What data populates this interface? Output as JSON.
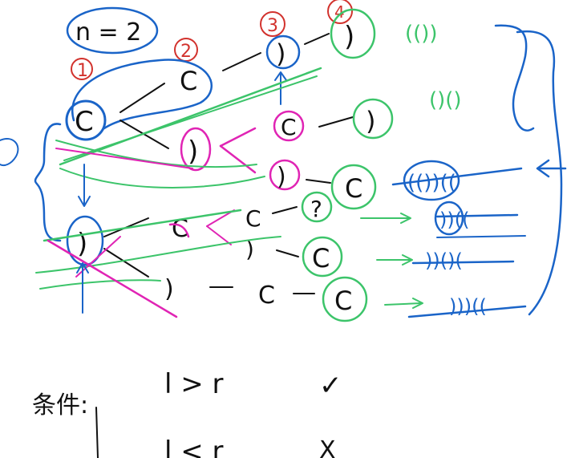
{
  "note": {
    "n_label": "n = 2",
    "step_numbers": [
      "1",
      "2",
      "3",
      "4"
    ],
    "tree": {
      "root": "C",
      "level2_top": "C",
      "level2_bottom": ")",
      "level3_a": ")",
      "level3_b": "C",
      "level3_c": ")",
      "level4_a": ")",
      "level4_b": ")",
      "level4_c": "C",
      "lower_root": ")",
      "lower_c1": "C",
      "lower_c2": "C",
      "lower_q": "?",
      "lower_c3": "C",
      "lower_paren": ")",
      "lower_c4": "C",
      "lower_c5": "C"
    },
    "results": {
      "valid_1": "(())",
      "valid_2": "()()",
      "invalid_1": "(())((",
      "invalid_2": "))((",
      "invalid_3": "))()(",
      "invalid_4": ")))(("
    },
    "condition_label": "条件:",
    "rule_1": "l > r",
    "rule_1_mark": "✓",
    "rule_2": "l < r",
    "rule_2_mark": "X"
  },
  "colors": {
    "ink": "#111111",
    "blue": "#1a64c8",
    "green": "#3cc46a",
    "red": "#d2322d",
    "magenta": "#e024b4"
  }
}
